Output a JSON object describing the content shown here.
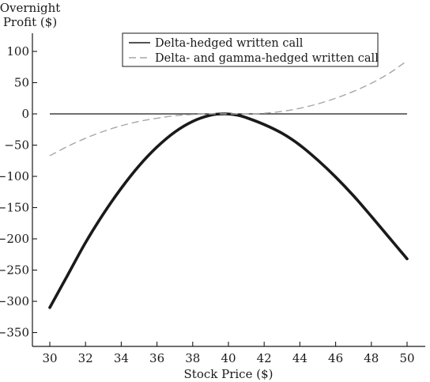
{
  "chart_data": {
    "type": "line",
    "y_title_lines": [
      "Overnight",
      "Profit ($)"
    ],
    "xlabel": "Stock Price ($)",
    "xlim": [
      29.5,
      51
    ],
    "ylim": [
      -370,
      110
    ],
    "x_ticks": [
      30,
      32,
      34,
      36,
      38,
      40,
      42,
      44,
      46,
      48,
      50
    ],
    "y_ticks": [
      100,
      50,
      0,
      -50,
      -100,
      -150,
      -200,
      -250,
      -300,
      -350
    ],
    "grid": false,
    "legend_position": "top-right",
    "zero_line": {
      "value": 0,
      "x_range": [
        30,
        50
      ],
      "color": "#1a1a1a"
    },
    "series": [
      {
        "name": "Delta-hedged written call",
        "color": "#1a1a1a",
        "style": "solid",
        "x": [
          30,
          31,
          32,
          33,
          34,
          35,
          36,
          37,
          38,
          39,
          39.8,
          40.5,
          41,
          42,
          43,
          44,
          45,
          46,
          47,
          48,
          49,
          50
        ],
        "y": [
          -310,
          -258,
          -206,
          -160,
          -119,
          -83,
          -53,
          -29,
          -12,
          -2,
          0,
          -2,
          -6,
          -17,
          -31,
          -50,
          -74,
          -101,
          -131,
          -164,
          -198,
          -232
        ]
      },
      {
        "name": "Delta- and gamma-hedged written call",
        "color": "#a6a6a6",
        "style": "dashed",
        "x": [
          30,
          31,
          32,
          33,
          34,
          35,
          36,
          37,
          38,
          39,
          40,
          41,
          42,
          43,
          44,
          45,
          46,
          47,
          48,
          49,
          50
        ],
        "y": [
          -67,
          -52,
          -39,
          -28,
          -19,
          -12,
          -7,
          -3,
          -1,
          0,
          0,
          0,
          1,
          4,
          9,
          16,
          25,
          36,
          49,
          65,
          85
        ]
      }
    ]
  }
}
